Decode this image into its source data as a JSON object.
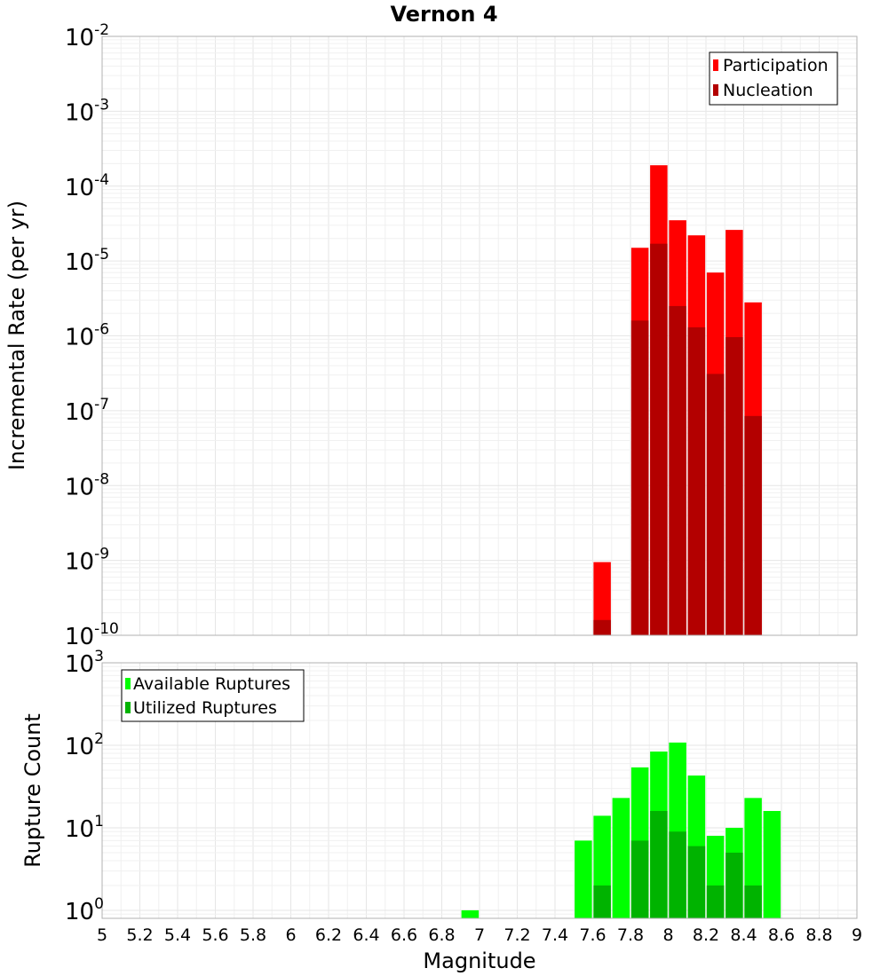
{
  "chart_data": [
    {
      "type": "bar",
      "title": "Vernon 4",
      "xlabel": "",
      "ylabel": "Incremental Rate (per yr)",
      "xlim": [
        5,
        9
      ],
      "ylim": [
        1e-10,
        0.01
      ],
      "yscale": "log",
      "grid": true,
      "legend_placement": "top-right",
      "y_tick_exponents": [
        "-10",
        "-9",
        "-8",
        "-7",
        "-6",
        "-5",
        "-4",
        "-3",
        "-2"
      ],
      "y_tick_base": "10",
      "series": [
        {
          "name": "Participation",
          "color": "#ff0000",
          "x": [
            7.65,
            7.85,
            7.95,
            8.05,
            8.15,
            8.25,
            8.35,
            8.45
          ],
          "values": [
            9.5e-10,
            1.5e-05,
            0.00019,
            3.5e-05,
            2.2e-05,
            7e-06,
            2.6e-05,
            2.8e-06
          ]
        },
        {
          "name": "Nucleation",
          "color": "#b30000",
          "x": [
            7.65,
            7.85,
            7.95,
            8.05,
            8.15,
            8.25,
            8.35,
            8.45
          ],
          "values": [
            1.6e-10,
            1.6e-06,
            1.7e-05,
            2.5e-06,
            1.3e-06,
            3.1e-07,
            9.6e-07,
            8.5e-08
          ]
        }
      ]
    },
    {
      "type": "bar",
      "title": "",
      "xlabel": "Magnitude",
      "ylabel": "Rupture Count",
      "xlim": [
        5,
        9
      ],
      "ylim": [
        0.8,
        1000
      ],
      "yscale": "log",
      "grid": true,
      "legend_placement": "top-left",
      "x_ticks": [
        "5",
        "5.2",
        "5.4",
        "5.6",
        "5.8",
        "6",
        "6.2",
        "6.4",
        "6.6",
        "6.8",
        "7",
        "7.2",
        "7.4",
        "7.6",
        "7.8",
        "8",
        "8.2",
        "8.4",
        "8.6",
        "8.8",
        "9"
      ],
      "y_tick_exponents": [
        "0",
        "1",
        "2",
        "3"
      ],
      "y_tick_base": "10",
      "series": [
        {
          "name": "Available Ruptures",
          "color": "#00ff00",
          "x": [
            6.95,
            7.55,
            7.65,
            7.75,
            7.85,
            7.95,
            8.05,
            8.15,
            8.25,
            8.35,
            8.45,
            8.55
          ],
          "values": [
            1,
            7,
            14,
            23,
            54,
            84,
            108,
            43,
            8,
            10,
            23,
            16
          ]
        },
        {
          "name": "Utilized Ruptures",
          "color": "#00b300",
          "x": [
            7.65,
            7.85,
            7.95,
            8.05,
            8.15,
            8.25,
            8.35,
            8.45
          ],
          "values": [
            2,
            7,
            16,
            9,
            6,
            2,
            5,
            2
          ]
        }
      ]
    }
  ]
}
